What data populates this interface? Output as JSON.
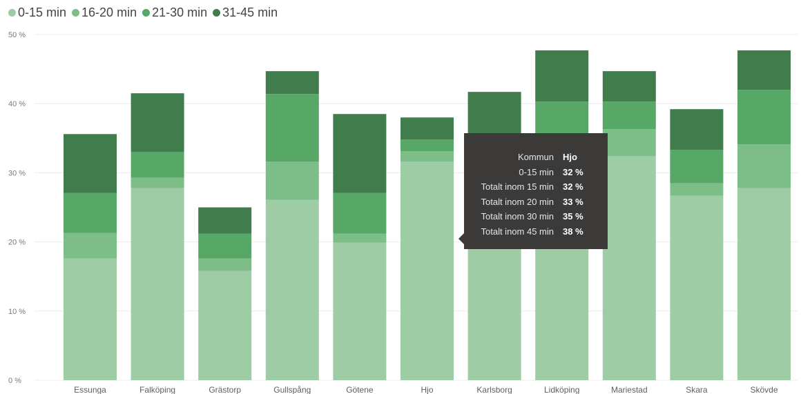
{
  "chart_data": {
    "type": "bar",
    "stacked": true,
    "categories": [
      "Essunga",
      "Falköping",
      "Grästorp",
      "Gullspång",
      "Götene",
      "Hjo",
      "Karlsborg",
      "Lidköping",
      "Mariestad",
      "Skara",
      "Skövde"
    ],
    "series": [
      {
        "name": "0-15 min",
        "color": "#9dcca5",
        "values": [
          17.6,
          27.8,
          15.8,
          26.1,
          19.9,
          31.6,
          19.2,
          19.2,
          32.4,
          26.7,
          27.8
        ]
      },
      {
        "name": "16-20 min",
        "color": "#7dbe88",
        "values": [
          3.7,
          1.5,
          1.8,
          5.5,
          1.3,
          1.5,
          0.0,
          0.0,
          3.9,
          1.8,
          6.3
        ]
      },
      {
        "name": "21-30 min",
        "color": "#57a866",
        "values": [
          5.8,
          3.7,
          3.6,
          9.8,
          5.9,
          1.7,
          0.0,
          21.1,
          4.0,
          4.8,
          7.9
        ]
      },
      {
        "name": "31-45 min",
        "color": "#417c4d",
        "values": [
          8.5,
          8.5,
          3.8,
          3.3,
          11.4,
          3.2,
          22.5,
          7.4,
          4.4,
          5.9,
          5.7
        ]
      }
    ],
    "y_ticks": [
      "0 %",
      "10 %",
      "20 %",
      "30 %",
      "40 %",
      "50 %"
    ],
    "ylim": [
      0,
      50
    ],
    "grid": true,
    "legend_position": "top-left",
    "title": "",
    "xlabel": "",
    "ylabel": ""
  },
  "tooltip": {
    "rows": [
      {
        "label": "Kommun",
        "value": "Hjo"
      },
      {
        "label": "0-15 min",
        "value": "32 %"
      },
      {
        "label": "Totalt inom 15 min",
        "value": "32 %"
      },
      {
        "label": "Totalt inom 20 min",
        "value": "33 %"
      },
      {
        "label": "Totalt inom 30 min",
        "value": "35 %"
      },
      {
        "label": "Totalt inom 45 min",
        "value": "38 %"
      }
    ]
  }
}
